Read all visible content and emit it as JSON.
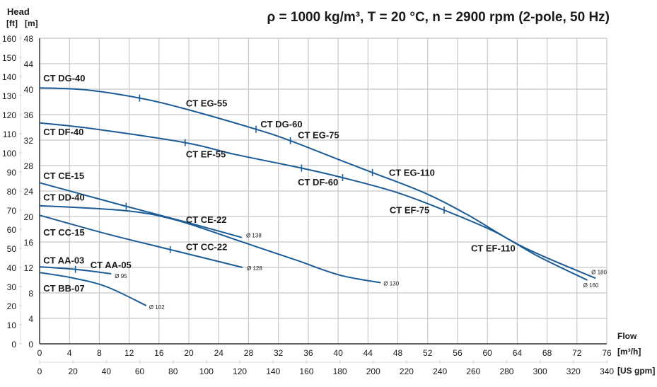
{
  "chart_data": {
    "type": "line",
    "title": "ρ = 1000 kg/m³, T = 20 °C, n = 2900 rpm (2-pole, 50 Hz)",
    "ylabel": "Head",
    "yunits_ft": "[ft]",
    "yunits_m": "[m]",
    "xlabel": "Flow",
    "xunits_m3h": "[m³/h]",
    "xunits_gpm": "[US gpm]",
    "xlim": [
      0,
      76
    ],
    "ylim": [
      0,
      48
    ],
    "grid": true,
    "x_ticks_m3h": [
      "0",
      "4",
      "8",
      "12",
      "16",
      "20",
      "24",
      "28",
      "32",
      "36",
      "40",
      "44",
      "48",
      "52",
      "56",
      "60",
      "64",
      "68",
      "72",
      "76"
    ],
    "x_ticks_gpm": [
      "0",
      "20",
      "40",
      "60",
      "80",
      "100",
      "120",
      "140",
      "160",
      "180",
      "200",
      "220",
      "240",
      "260",
      "280",
      "300",
      "320",
      "340"
    ],
    "y_ticks_m": [
      "0",
      "4",
      "8",
      "12",
      "16",
      "20",
      "24",
      "28",
      "32",
      "36",
      "40",
      "44",
      "48"
    ],
    "y_ticks_ft": [
      "0",
      "10",
      "20",
      "30",
      "40",
      "50",
      "60",
      "70",
      "80",
      "90",
      "100",
      "110",
      "120",
      "130",
      "140",
      "150",
      "160"
    ],
    "series": [
      {
        "name": "Ø 180",
        "impeller": "Ø 180",
        "x": [
          0,
          6.1,
          13.4,
          19.5,
          29,
          33.6,
          40.6,
          44.6,
          51.6,
          57.3,
          64.8,
          74.5
        ],
        "y": [
          40.2,
          39.9,
          38.6,
          36.9,
          33.7,
          31.9,
          28.7,
          26.9,
          23.7,
          20.3,
          15.2,
          10.3
        ],
        "ticks_x": [
          13.4,
          29,
          33.6,
          44.6
        ]
      },
      {
        "name": "Ø 160",
        "impeller": "Ø 160",
        "x": [
          0,
          7,
          19.5,
          26,
          35.1,
          40.6,
          47.8,
          54.2,
          61,
          66.7,
          73.4
        ],
        "y": [
          34.7,
          33.8,
          31.6,
          29.8,
          27.6,
          26.1,
          23.8,
          21,
          17.6,
          13.8,
          10
        ],
        "ticks_x": [
          19.5,
          35.1,
          40.6,
          54.2
        ]
      },
      {
        "name": "Ø 138",
        "impeller": "Ø 138",
        "x": [
          0,
          11.6,
          20,
          27.1
        ],
        "y": [
          25.3,
          21.6,
          19,
          16.7
        ],
        "ticks_x": [
          11.6
        ]
      },
      {
        "name": "Ø 130",
        "impeller": "Ø 130",
        "x": [
          0,
          11.6,
          18.4,
          26.9,
          34.5,
          40.2,
          45.7
        ],
        "y": [
          21.7,
          20.9,
          19.4,
          16.1,
          13.1,
          10.8,
          9.6
        ],
        "ticks_x": []
      },
      {
        "name": "Ø 128",
        "impeller": "Ø 128",
        "x": [
          0,
          8.9,
          17.5,
          27.2
        ],
        "y": [
          20.2,
          17.3,
          14.8,
          12
        ],
        "ticks_x": [
          17.5
        ]
      },
      {
        "name": "Ø 95",
        "impeller": "Ø 95",
        "x": [
          0,
          4.8,
          9.6
        ],
        "y": [
          12.1,
          11.7,
          11
        ],
        "ticks_x": [
          4.8
        ]
      },
      {
        "name": "Ø 102",
        "impeller": "Ø 102",
        "x": [
          0,
          4.2,
          8.9,
          14.3
        ],
        "y": [
          11.2,
          10.4,
          9,
          6
        ],
        "ticks_x": []
      }
    ],
    "annotations": [
      {
        "text": "CT DG-40",
        "x": 0.5,
        "y": 41.2
      },
      {
        "text": "CT EG-55",
        "x": 19.6,
        "y": 37.3
      },
      {
        "text": "CT DG-60",
        "x": 29.6,
        "y": 34.0
      },
      {
        "text": "CT EG-75",
        "x": 34.6,
        "y": 32.3
      },
      {
        "text": "CT EG-110",
        "x": 46.8,
        "y": 26.4
      },
      {
        "text": "CT DF-40",
        "x": 0.5,
        "y": 32.8
      },
      {
        "text": "CT EF-55",
        "x": 19.6,
        "y": 29.3
      },
      {
        "text": "CT DF-60",
        "x": 34.6,
        "y": 24.9
      },
      {
        "text": "CT EF-75",
        "x": 46.9,
        "y": 20.5
      },
      {
        "text": "CT EF-110",
        "x": 57.8,
        "y": 14.5
      },
      {
        "text": "CT CE-15",
        "x": 0.5,
        "y": 25.9
      },
      {
        "text": "CT DD-40",
        "x": 0.5,
        "y": 22.5
      },
      {
        "text": "CT CE-22",
        "x": 19.6,
        "y": 19.0
      },
      {
        "text": "CT CC-15",
        "x": 0.5,
        "y": 17.0
      },
      {
        "text": "CT CC-22",
        "x": 19.6,
        "y": 14.7
      },
      {
        "text": "CT AA-03",
        "x": 0.5,
        "y": 12.6
      },
      {
        "text": "CT AA-05",
        "x": 6.8,
        "y": 11.9
      },
      {
        "text": "CT BB-07",
        "x": 0.5,
        "y": 8.2
      }
    ]
  }
}
